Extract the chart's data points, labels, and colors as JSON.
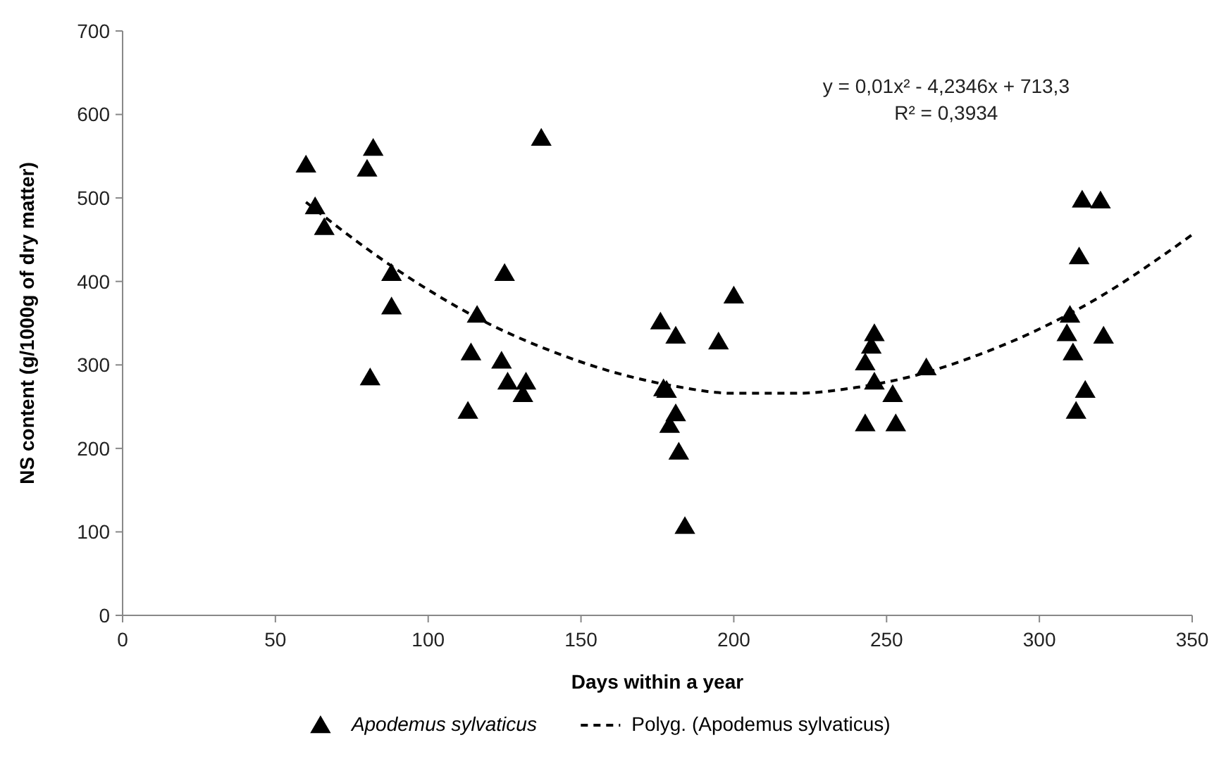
{
  "chart_data": {
    "type": "scatter",
    "xlabel": "Days within a year",
    "ylabel": "NS content (g/1000g of dry matter)",
    "xlim": [
      0,
      350
    ],
    "xticks": [
      0,
      50,
      100,
      150,
      200,
      250,
      300,
      350
    ],
    "ylim": [
      0,
      700
    ],
    "yticks": [
      0,
      100,
      200,
      300,
      400,
      500,
      600,
      700
    ],
    "grid": false,
    "legend": "bottom",
    "annotations": [
      "y = 0,01x² - 4,2346x + 713,3",
      "R² = 0,3934"
    ],
    "series": [
      {
        "name": "Apodemus sylvaticus",
        "color": "#000000",
        "marker": "triangle",
        "x": [
          60,
          63,
          66,
          80,
          82,
          81,
          88,
          88,
          113,
          114,
          116,
          124,
          125,
          126,
          131,
          132,
          137,
          176,
          177,
          178,
          179,
          181,
          181,
          182,
          184,
          195,
          200,
          243,
          243,
          245,
          246,
          246,
          252,
          253,
          263,
          309,
          310,
          311,
          312,
          313,
          314,
          315,
          320,
          321
        ],
        "values": [
          540,
          490,
          465,
          535,
          560,
          285,
          410,
          370,
          245,
          315,
          360,
          305,
          410,
          280,
          265,
          280,
          572,
          352,
          272,
          270,
          228,
          335,
          242,
          196,
          107,
          328,
          383,
          303,
          230,
          323,
          338,
          280,
          265,
          230,
          297,
          338,
          360,
          315,
          245,
          430,
          498,
          270,
          497,
          335
        ]
      },
      {
        "name": "Polyg. (Apodemus sylvaticus)",
        "type": "line",
        "color": "#000000",
        "marker": "none",
        "line_style": "dashed",
        "x": [
          60,
          80,
          100,
          120,
          140,
          160,
          180,
          200,
          220,
          240,
          260,
          280,
          300,
          320,
          340,
          350
        ],
        "values": [
          495,
          439,
          390,
          349,
          317,
          292,
          275,
          266,
          266,
          273,
          288,
          312,
          343,
          382,
          430,
          456
        ]
      }
    ]
  }
}
